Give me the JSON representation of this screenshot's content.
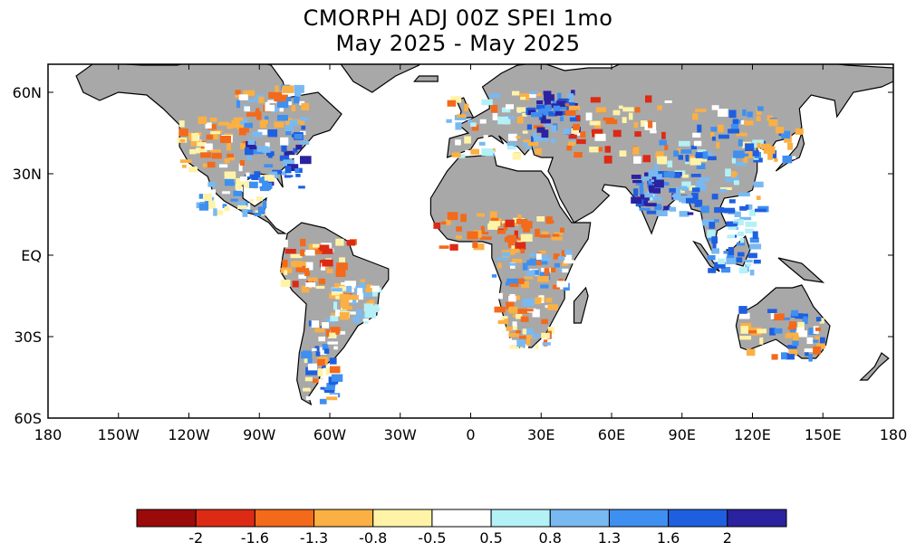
{
  "title": {
    "line1": "CMORPH ADJ 00Z SPEI 1mo",
    "line2": "May 2025 - May 2025"
  },
  "axes": {
    "lat_labels": [
      "60N",
      "30N",
      "EQ",
      "30S",
      "60S"
    ],
    "lon_labels": [
      "180",
      "150W",
      "120W",
      "90W",
      "60W",
      "30W",
      "0",
      "30E",
      "60E",
      "90E",
      "120E",
      "150E",
      "180"
    ]
  },
  "colorbar": {
    "colors": [
      "#9b0a0a",
      "#dc2a14",
      "#f36a1a",
      "#fbb044",
      "#fff3a8",
      "#ffffff",
      "#b4f1f7",
      "#79b9f2",
      "#3f8ff0",
      "#1e5fe0",
      "#2b22a0"
    ],
    "tick_labels": [
      "-2",
      "-1.6",
      "-1.3",
      "-0.8",
      "-0.5",
      "0.5",
      "0.8",
      "1.3",
      "1.6",
      "2"
    ]
  },
  "legend_colors": {
    "no_data": "#a8a8a8",
    "ocean": "#ffffff",
    "coast": "#000000"
  }
}
